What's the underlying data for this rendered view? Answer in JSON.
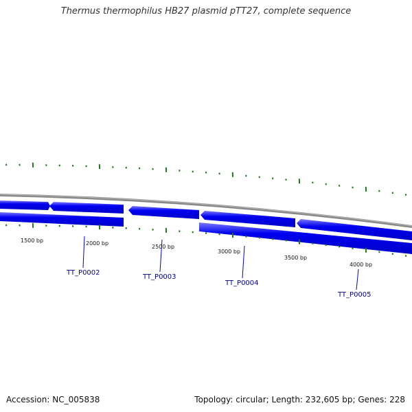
{
  "title": "Thermus thermophilus HB27 plasmid pTT27, complete sequence",
  "footer": {
    "accession": "Accession: NC_005838",
    "summary": "Topology: circular; Length: 232,605 bp; Genes: 228"
  },
  "colors": {
    "backbone": "#8a8a8a",
    "gene_fill": "#0000e6",
    "gene_highlight": "#7a7aff",
    "tick": "#1a7a1a",
    "label_line": "#0000cc"
  },
  "scale_labels": [
    "1500 bp",
    "2000 bp",
    "2500 bp",
    "3000 bp",
    "3500 bp",
    "4000 bp"
  ],
  "genes": [
    {
      "name": "TT_P0002"
    },
    {
      "name": "TT_P0003"
    },
    {
      "name": "TT_P0004"
    },
    {
      "name": "TT_P0005"
    }
  ]
}
